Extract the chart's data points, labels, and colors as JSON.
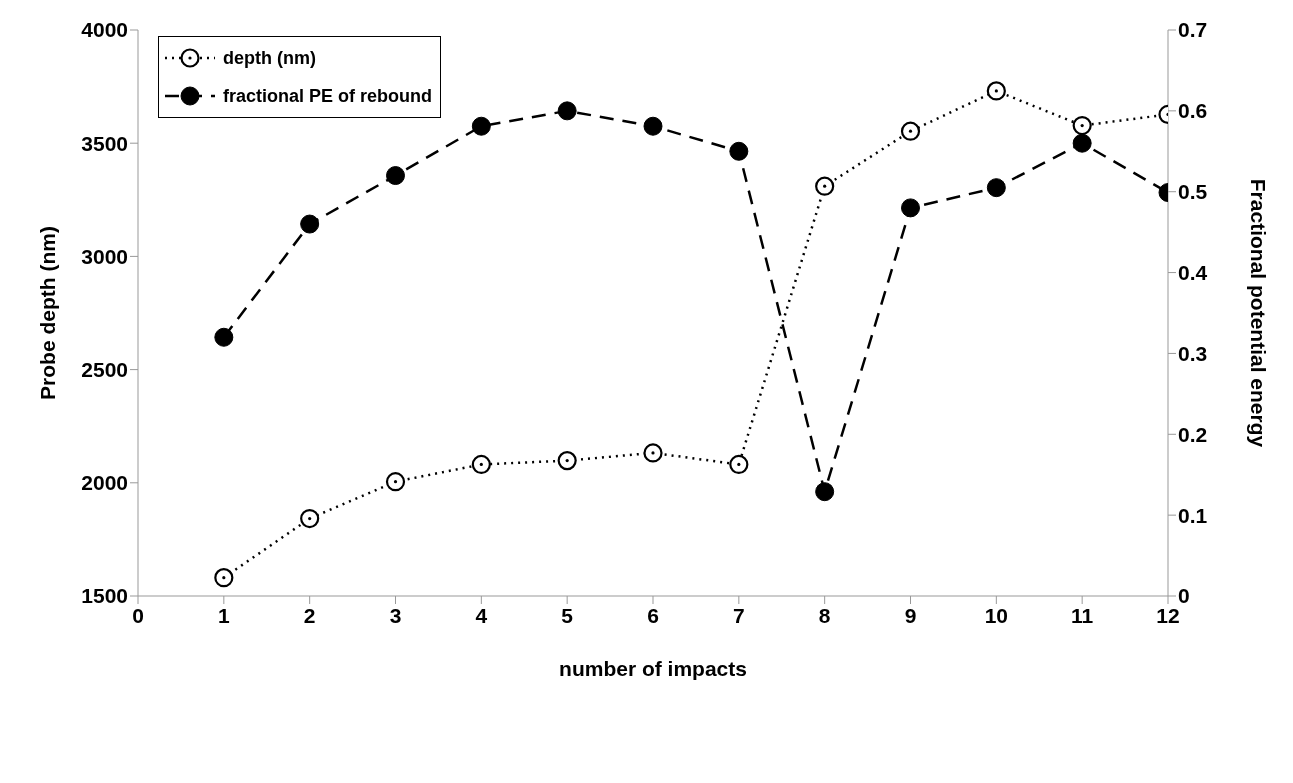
{
  "chart_data": {
    "type": "line",
    "xlabel": "number of impacts",
    "ylabel": "Probe depth (nm)",
    "y2label": "Fractional potential energy",
    "x": [
      1,
      2,
      3,
      4,
      5,
      6,
      7,
      8,
      9,
      10,
      11,
      12
    ],
    "xlim": [
      0,
      12
    ],
    "xticks": [
      0,
      1,
      2,
      3,
      4,
      5,
      6,
      7,
      8,
      9,
      10,
      11,
      12
    ],
    "ylim": [
      1500,
      4000
    ],
    "yticks": [
      1500,
      2000,
      2500,
      3000,
      3500,
      4000
    ],
    "y2lim": [
      0,
      0.7
    ],
    "y2ticks": [
      0,
      0.1,
      0.2,
      0.3,
      0.4,
      0.5,
      0.6,
      0.7
    ],
    "legend": "top left",
    "grid": false,
    "series": [
      {
        "name": "depth (nm)",
        "color": "#000000",
        "marker": "circle",
        "line_style": "dotted",
        "values": [
          1581,
          1842,
          2005,
          2081,
          2098,
          2132,
          2081,
          3310,
          3553,
          3731,
          3578,
          3627
        ]
      },
      {
        "name": "fractional PE of rebound",
        "color": "#000000",
        "marker": "circle",
        "line_style": "dashed",
        "axis": "y2",
        "values": [
          0.32,
          0.46,
          0.52,
          0.581,
          0.6,
          0.581,
          0.55,
          0.129,
          0.48,
          0.505,
          0.56,
          0.499
        ]
      }
    ]
  }
}
